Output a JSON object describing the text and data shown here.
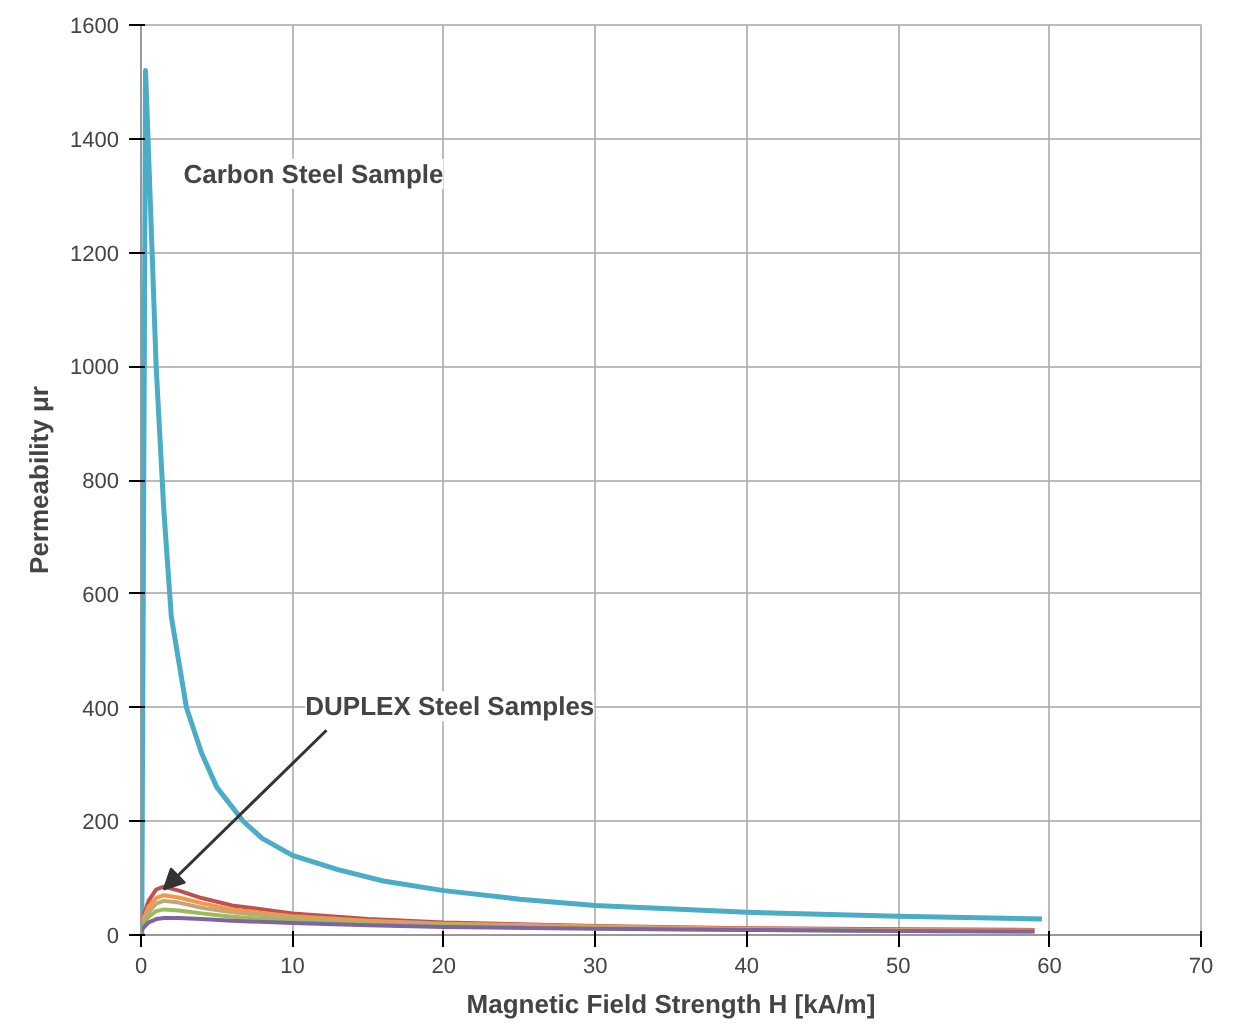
{
  "chart_data": {
    "type": "line",
    "xlabel": "Magnetic Field Strength H [kA/m]",
    "ylabel": "Permeability μr",
    "xlim": [
      0,
      70
    ],
    "ylim": [
      0,
      1600
    ],
    "xticks": [
      0,
      10,
      20,
      30,
      40,
      50,
      60,
      70
    ],
    "yticks": [
      0,
      200,
      400,
      600,
      800,
      1000,
      1200,
      1400,
      1600
    ],
    "grid": true,
    "marker": "none",
    "line_style": "solid",
    "annotations": [
      "Carbon Steel Sample",
      {
        "text": "DUPLEX Steel Samples",
        "x": 1.5,
        "y": 80
      }
    ],
    "series": [
      {
        "color": "#4bacc6",
        "x": [
          0.05,
          0.3,
          0.6,
          1,
          1.5,
          2,
          3,
          4,
          5,
          6.75,
          8,
          10,
          13,
          16,
          20,
          25,
          30,
          40,
          50,
          59.5
        ],
        "values": [
          0,
          1520,
          1300,
          1000,
          750,
          560,
          400,
          320,
          260,
          200,
          170,
          140,
          115,
          95,
          78,
          63,
          52,
          40,
          33,
          28
        ]
      },
      {
        "color": "#c0504d",
        "x": [
          0,
          0.5,
          1,
          1.5,
          2.5,
          4,
          6,
          10,
          15,
          20,
          30,
          40,
          50,
          59
        ],
        "values": [
          20,
          60,
          80,
          85,
          78,
          65,
          52,
          38,
          28,
          22,
          16,
          12,
          10,
          9
        ]
      },
      {
        "color": "#f79646",
        "x": [
          0,
          0.5,
          1,
          1.5,
          2.5,
          4,
          6,
          10,
          15,
          20,
          30,
          40,
          50,
          59
        ],
        "values": [
          18,
          50,
          65,
          70,
          66,
          56,
          45,
          33,
          25,
          20,
          15,
          11,
          9,
          8
        ]
      },
      {
        "color": "#c4a57a",
        "x": [
          0,
          0.5,
          1,
          1.5,
          2.5,
          4,
          6,
          10,
          15,
          20,
          30,
          40,
          50,
          59
        ],
        "values": [
          15,
          40,
          55,
          60,
          57,
          48,
          40,
          30,
          22,
          18,
          13,
          10,
          8,
          7
        ]
      },
      {
        "color": "#9bbb59",
        "x": [
          0,
          0.5,
          1,
          1.5,
          2.5,
          4,
          6,
          10,
          15,
          20,
          30,
          40,
          50,
          59
        ],
        "values": [
          12,
          32,
          42,
          45,
          43,
          38,
          32,
          25,
          19,
          16,
          12,
          9,
          7,
          6
        ]
      },
      {
        "color": "#8064a2",
        "x": [
          0,
          0.5,
          1,
          1.5,
          2.5,
          4,
          6,
          10,
          15,
          20,
          30,
          40,
          50,
          59
        ],
        "values": [
          8,
          22,
          28,
          30,
          30,
          28,
          25,
          21,
          17,
          14,
          11,
          9,
          7,
          6
        ]
      }
    ]
  }
}
